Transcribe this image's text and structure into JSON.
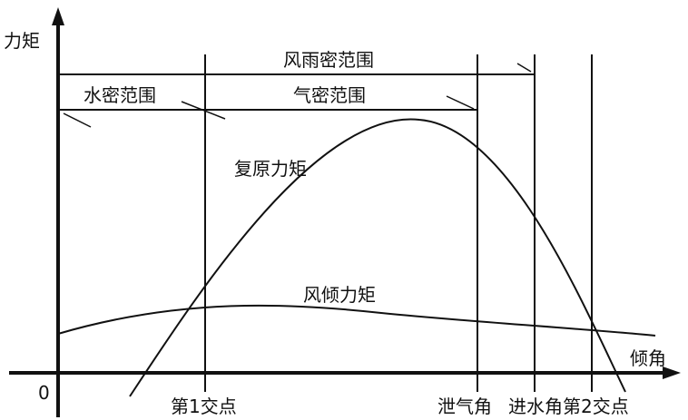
{
  "diagram": {
    "y_axis_label": "力矩",
    "x_axis_label": "倾角",
    "origin_label": "0",
    "curves": {
      "righting_moment": "复原力矩",
      "wind_heeling_moment": "风倾力矩"
    },
    "ranges": {
      "weathertight": "风雨密范围",
      "watertight": "水密范围",
      "airtight": "气密范围"
    },
    "markers": {
      "first_intersection": "第1交点",
      "downflooding_angle_air": "泄气角",
      "downflooding_angle_water": "进水角",
      "second_intersection": "第2交点"
    }
  }
}
